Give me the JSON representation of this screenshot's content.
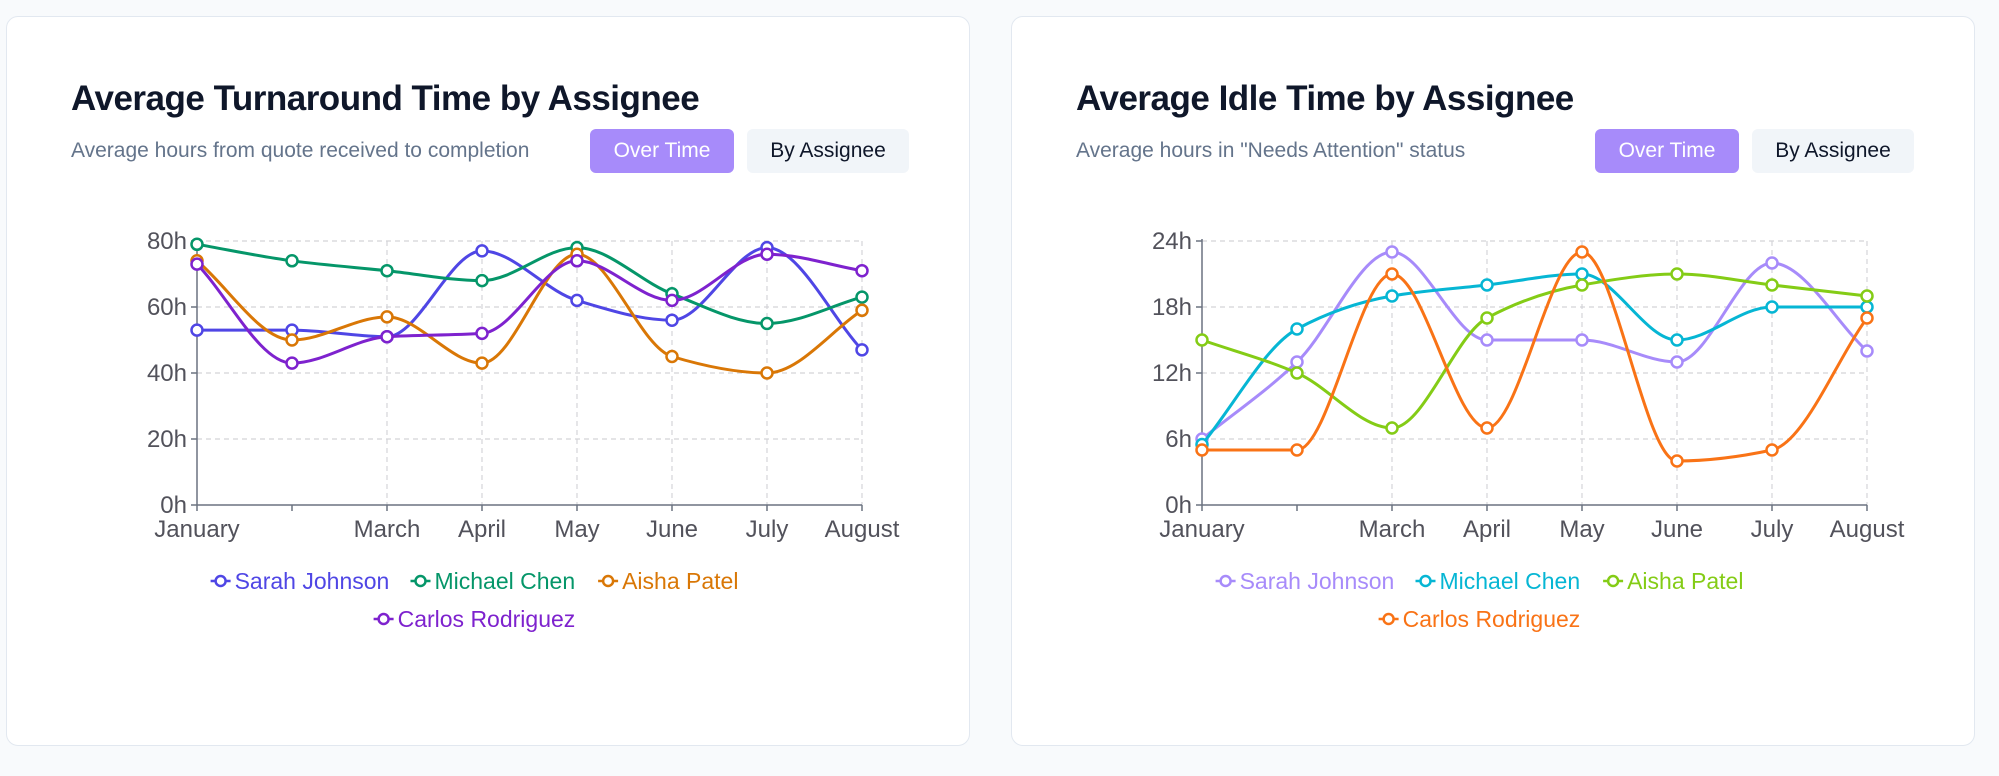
{
  "chart_data": [
    {
      "type": "line",
      "title": "Average Turnaround Time by Assignee",
      "subtitle": "Average hours from quote received to completion",
      "toggle": {
        "active": "Over Time",
        "inactive": "By Assignee"
      },
      "x": [
        0,
        1,
        2,
        3,
        4,
        5,
        6,
        7
      ],
      "x_tick_labels": [
        "January",
        "",
        "March",
        "April",
        "May",
        "June",
        "July",
        "August"
      ],
      "ylim": [
        0,
        80
      ],
      "y_ticks": [
        0,
        20,
        40,
        60,
        80
      ],
      "y_tick_suffix": "h",
      "grid": true,
      "legend_position": "bottom",
      "series": [
        {
          "name": "Sarah Johnson",
          "color": "#4f46e5",
          "values": [
            53,
            53,
            51,
            77,
            62,
            56,
            78,
            47
          ]
        },
        {
          "name": "Michael Chen",
          "color": "#059669",
          "values": [
            79,
            74,
            71,
            68,
            78,
            64,
            55,
            63
          ]
        },
        {
          "name": "Aisha Patel",
          "color": "#d97706",
          "values": [
            74,
            50,
            57,
            43,
            76,
            45,
            40,
            59
          ]
        },
        {
          "name": "Carlos Rodriguez",
          "color": "#7e22ce",
          "values": [
            73,
            43,
            51,
            52,
            74,
            62,
            76,
            71
          ]
        }
      ]
    },
    {
      "type": "line",
      "title": "Average Idle Time by Assignee",
      "subtitle": "Average hours in \"Needs Attention\" status",
      "toggle": {
        "active": "Over Time",
        "inactive": "By Assignee"
      },
      "x": [
        0,
        1,
        2,
        3,
        4,
        5,
        6,
        7
      ],
      "x_tick_labels": [
        "January",
        "",
        "March",
        "April",
        "May",
        "June",
        "July",
        "August"
      ],
      "ylim": [
        0,
        24
      ],
      "y_ticks": [
        0,
        6,
        12,
        18,
        24
      ],
      "y_tick_suffix": "h",
      "grid": true,
      "legend_position": "bottom",
      "series": [
        {
          "name": "Sarah Johnson",
          "color": "#a78bfa",
          "values": [
            6,
            13,
            23,
            15,
            15,
            13,
            22,
            14
          ]
        },
        {
          "name": "Michael Chen",
          "color": "#06b6d4",
          "values": [
            5.5,
            16,
            19,
            20,
            21,
            15,
            18,
            18
          ]
        },
        {
          "name": "Aisha Patel",
          "color": "#84cc16",
          "values": [
            15,
            12,
            7,
            17,
            20,
            21,
            20,
            19
          ]
        },
        {
          "name": "Carlos Rodriguez",
          "color": "#f97316",
          "values": [
            5,
            5,
            21,
            7,
            23,
            4,
            5,
            17
          ]
        }
      ]
    }
  ]
}
